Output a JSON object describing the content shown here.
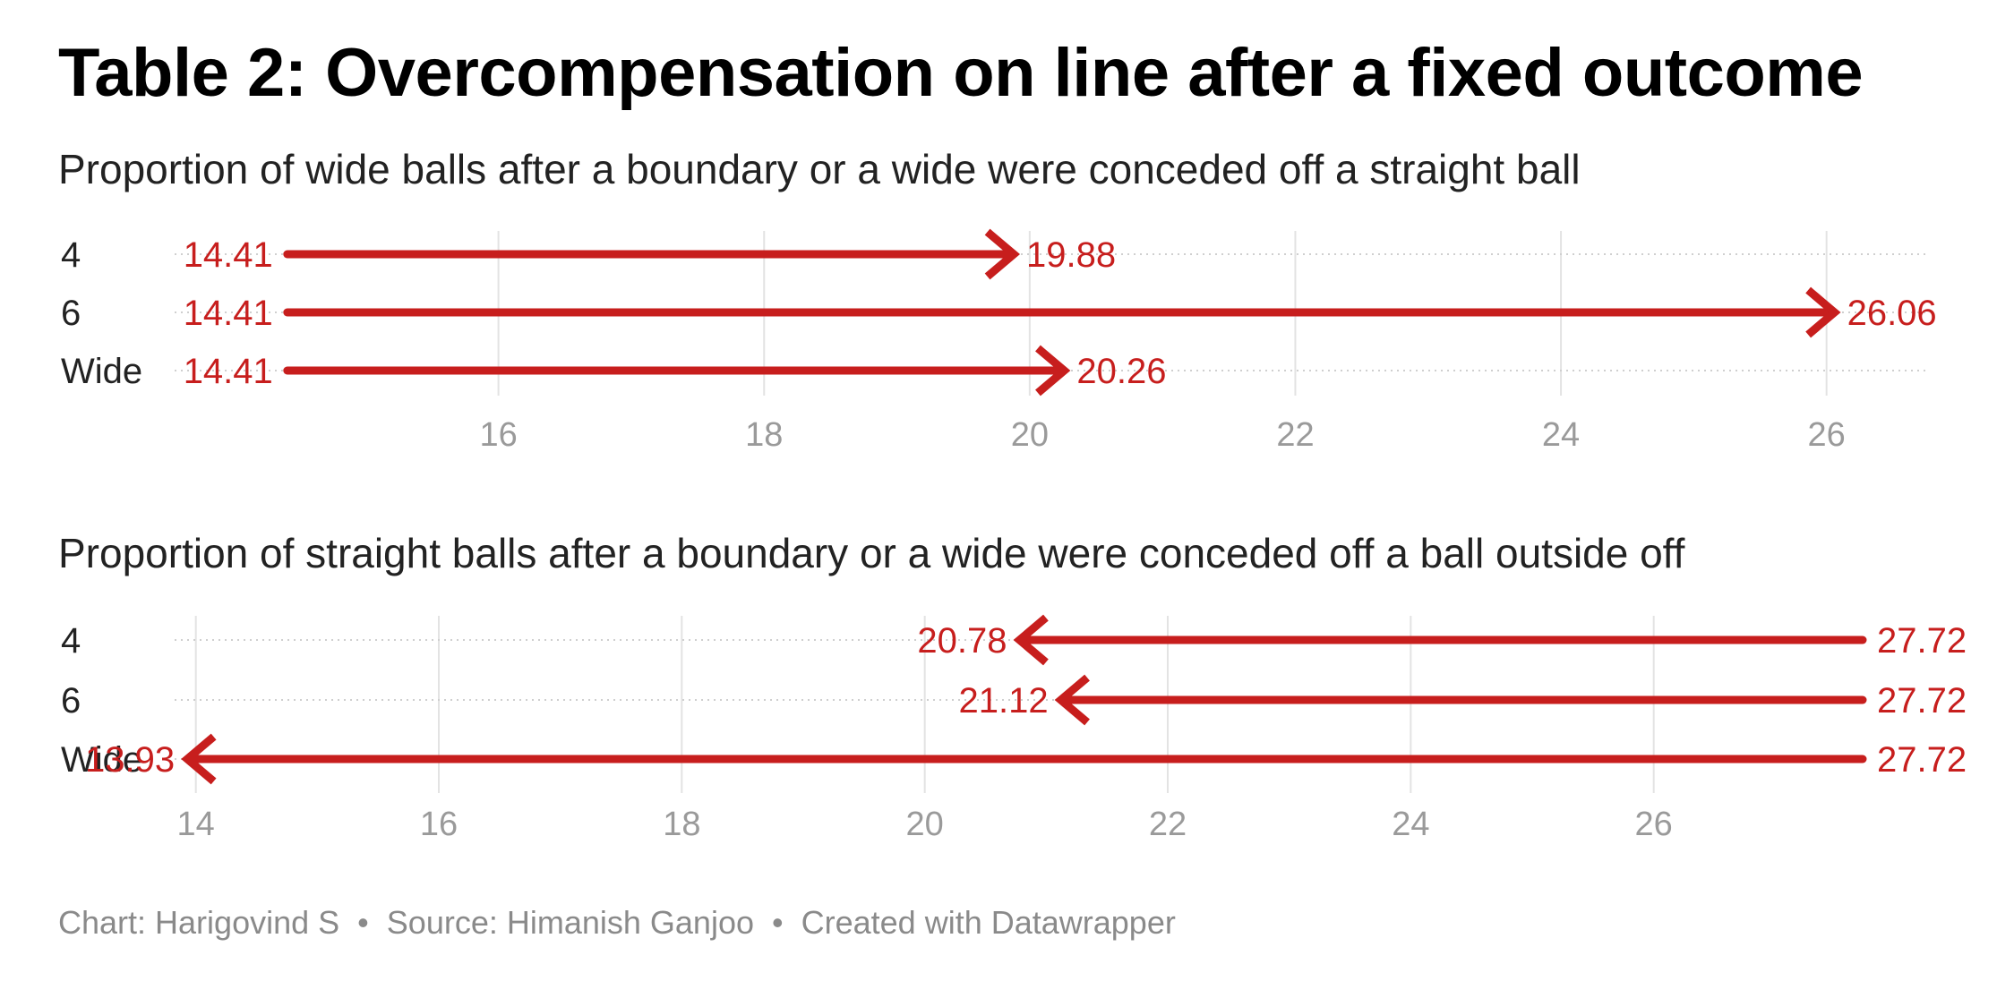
{
  "header": {
    "title": "Table 2: Overcompensation on line after a fixed outcome"
  },
  "footer": {
    "chart_credit": "Chart: Harigovind S",
    "separator": "•",
    "source": "Source: Himanish Ganjoo",
    "tool": "Created with Datawrapper"
  },
  "colors": {
    "arrow": "#c71e1d",
    "label": "#c71e1d",
    "grid": "#e3e3e3",
    "tick_label": "#9a9a9a",
    "row_label": "#222222"
  },
  "chart_data": [
    {
      "type": "arrow",
      "title": "Proportion of wide balls after a boundary or a wide were conceded off a straight ball",
      "xlabel": "",
      "ylabel": "",
      "xlim": [
        14,
        27
      ],
      "xticks": [
        16,
        18,
        20,
        22,
        24,
        26
      ],
      "grid": true,
      "rows": [
        {
          "category": "4",
          "start": 14.41,
          "end": 19.88,
          "start_label": "14.41",
          "end_label": "19.88"
        },
        {
          "category": "6",
          "start": 14.41,
          "end": 26.06,
          "start_label": "14.41",
          "end_label": "26.06"
        },
        {
          "category": "Wide",
          "start": 14.41,
          "end": 20.26,
          "start_label": "14.41",
          "end_label": "20.26"
        }
      ]
    },
    {
      "type": "arrow",
      "title": "Proportion of straight balls after a boundary or a wide were conceded off a ball outside off",
      "xlabel": "",
      "ylabel": "",
      "xlim": [
        13,
        28
      ],
      "xticks": [
        14,
        16,
        18,
        20,
        22,
        24,
        26
      ],
      "grid": true,
      "rows": [
        {
          "category": "4",
          "start": 27.72,
          "end": 20.78,
          "start_label": "27.72",
          "end_label": "20.78"
        },
        {
          "category": "6",
          "start": 27.72,
          "end": 21.12,
          "start_label": "27.72",
          "end_label": "21.12"
        },
        {
          "category": "Wide",
          "start": 27.72,
          "end": 13.93,
          "start_label": "27.72",
          "end_label": "13.93"
        }
      ]
    }
  ]
}
